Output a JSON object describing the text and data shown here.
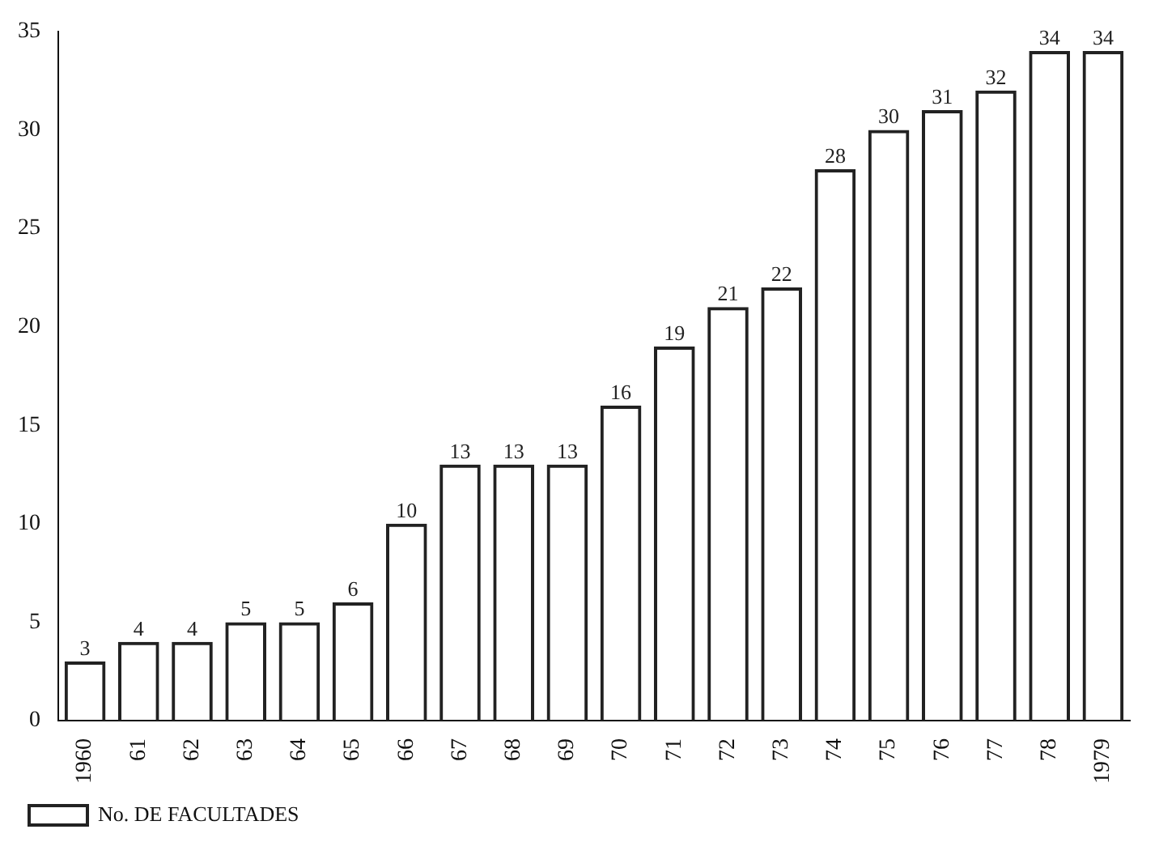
{
  "chart_data": {
    "type": "bar",
    "categories": [
      "1960",
      "61",
      "62",
      "63",
      "64",
      "65",
      "66",
      "67",
      "68",
      "69",
      "70",
      "71",
      "72",
      "73",
      "74",
      "75",
      "76",
      "77",
      "78",
      "1979"
    ],
    "series": [
      {
        "name": "No. DE FACULTADES",
        "color": "#222222",
        "values": [
          3,
          4,
          4,
          5,
          5,
          6,
          10,
          13,
          13,
          13,
          16,
          19,
          21,
          22,
          28,
          30,
          31,
          32,
          34,
          34
        ]
      }
    ],
    "ylim": [
      0,
      35
    ],
    "yticks": [
      0,
      5,
      10,
      15,
      20,
      25,
      30,
      35
    ],
    "grid": false,
    "legend": "bottom left",
    "data_labels": true
  }
}
